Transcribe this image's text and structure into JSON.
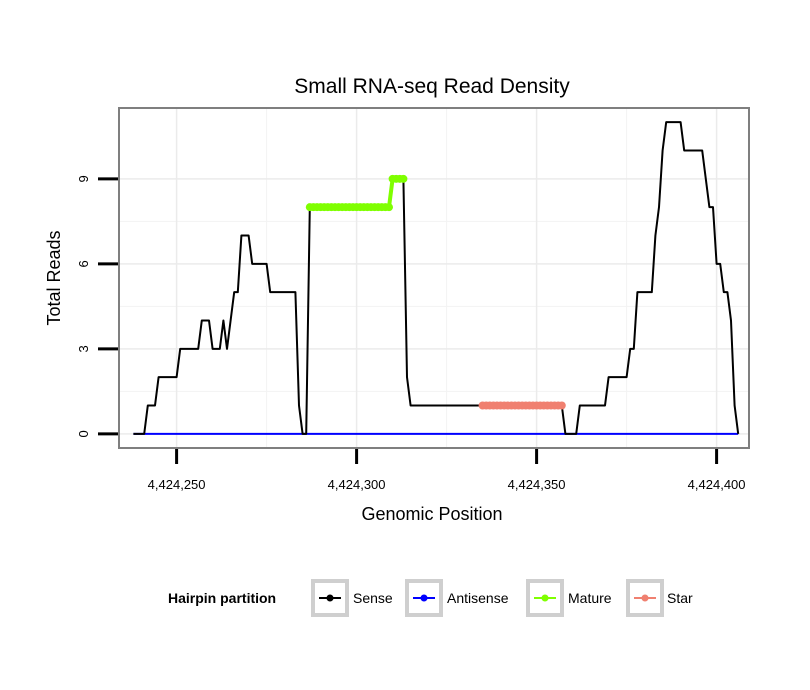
{
  "chart_data": {
    "type": "line",
    "title": "Small RNA-seq Read Density",
    "xlabel": "Genomic Position",
    "ylabel": "Total Reads",
    "xlim": [
      4424234,
      4424409
    ],
    "ylim": [
      -0.5,
      11.5
    ],
    "x_ticks": [
      4424250,
      4424300,
      4424350,
      4424400
    ],
    "x_tick_labels": [
      "4,424,250",
      "4,424,300",
      "4,424,350",
      "4,424,400"
    ],
    "y_ticks": [
      0,
      3,
      6,
      9
    ],
    "y_tick_labels": [
      "0",
      "3",
      "6",
      "9"
    ],
    "grid": true,
    "legend_position": "bottom",
    "legend_title": "Hairpin partition",
    "series": [
      {
        "name": "Sense",
        "color": "#000000",
        "style": "line",
        "points": [
          [
            4424238,
            0
          ],
          [
            4424241,
            0
          ],
          [
            4424242,
            1
          ],
          [
            4424244,
            1
          ],
          [
            4424245,
            2
          ],
          [
            4424250,
            2
          ],
          [
            4424251,
            3
          ],
          [
            4424256,
            3
          ],
          [
            4424257,
            4
          ],
          [
            4424259,
            4
          ],
          [
            4424260,
            3
          ],
          [
            4424262,
            3
          ],
          [
            4424263,
            4
          ],
          [
            4424264,
            3
          ],
          [
            4424266,
            5
          ],
          [
            4424267,
            5
          ],
          [
            4424268,
            7
          ],
          [
            4424270,
            7
          ],
          [
            4424271,
            6
          ],
          [
            4424275,
            6
          ],
          [
            4424276,
            5
          ],
          [
            4424283,
            5
          ],
          [
            4424284,
            1
          ],
          [
            4424285,
            0
          ],
          [
            4424286,
            0
          ],
          [
            4424287,
            8
          ],
          [
            4424309,
            8
          ],
          [
            4424310,
            9
          ],
          [
            4424313,
            9
          ],
          [
            4424314,
            2
          ],
          [
            4424315,
            1
          ],
          [
            4424357,
            1
          ],
          [
            4424358,
            0
          ],
          [
            4424361,
            0
          ],
          [
            4424362,
            1
          ],
          [
            4424369,
            1
          ],
          [
            4424370,
            2
          ],
          [
            4424375,
            2
          ],
          [
            4424376,
            3
          ],
          [
            4424377,
            3
          ],
          [
            4424378,
            5
          ],
          [
            4424382,
            5
          ],
          [
            4424383,
            7
          ],
          [
            4424384,
            8
          ],
          [
            4424385,
            10
          ],
          [
            4424386,
            11
          ],
          [
            4424390,
            11
          ],
          [
            4424391,
            10
          ],
          [
            4424396,
            10
          ],
          [
            4424397,
            9
          ],
          [
            4424398,
            8
          ],
          [
            4424399,
            8
          ],
          [
            4424400,
            6
          ],
          [
            4424401,
            6
          ],
          [
            4424402,
            5
          ],
          [
            4424403,
            5
          ],
          [
            4424404,
            4
          ],
          [
            4424405,
            1
          ],
          [
            4424406,
            0
          ]
        ]
      },
      {
        "name": "Antisense",
        "color": "#0000ff",
        "style": "line",
        "points": [
          [
            4424238,
            0
          ],
          [
            4424406,
            0
          ]
        ]
      },
      {
        "name": "Mature",
        "color": "#7fff00",
        "style": "line-points",
        "points": [
          [
            4424287,
            8
          ],
          [
            4424288,
            8
          ],
          [
            4424289,
            8
          ],
          [
            4424290,
            8
          ],
          [
            4424291,
            8
          ],
          [
            4424292,
            8
          ],
          [
            4424293,
            8
          ],
          [
            4424294,
            8
          ],
          [
            4424295,
            8
          ],
          [
            4424296,
            8
          ],
          [
            4424297,
            8
          ],
          [
            4424298,
            8
          ],
          [
            4424299,
            8
          ],
          [
            4424300,
            8
          ],
          [
            4424301,
            8
          ],
          [
            4424302,
            8
          ],
          [
            4424303,
            8
          ],
          [
            4424304,
            8
          ],
          [
            4424305,
            8
          ],
          [
            4424306,
            8
          ],
          [
            4424307,
            8
          ],
          [
            4424308,
            8
          ],
          [
            4424309,
            8
          ],
          [
            4424310,
            9
          ],
          [
            4424311,
            9
          ],
          [
            4424312,
            9
          ],
          [
            4424313,
            9
          ]
        ]
      },
      {
        "name": "Star",
        "color": "#f08070",
        "style": "line-points",
        "points": [
          [
            4424335,
            1
          ],
          [
            4424336,
            1
          ],
          [
            4424337,
            1
          ],
          [
            4424338,
            1
          ],
          [
            4424339,
            1
          ],
          [
            4424340,
            1
          ],
          [
            4424341,
            1
          ],
          [
            4424342,
            1
          ],
          [
            4424343,
            1
          ],
          [
            4424344,
            1
          ],
          [
            4424345,
            1
          ],
          [
            4424346,
            1
          ],
          [
            4424347,
            1
          ],
          [
            4424348,
            1
          ],
          [
            4424349,
            1
          ],
          [
            4424350,
            1
          ],
          [
            4424351,
            1
          ],
          [
            4424352,
            1
          ],
          [
            4424353,
            1
          ],
          [
            4424354,
            1
          ],
          [
            4424355,
            1
          ],
          [
            4424356,
            1
          ],
          [
            4424357,
            1
          ]
        ]
      }
    ]
  }
}
